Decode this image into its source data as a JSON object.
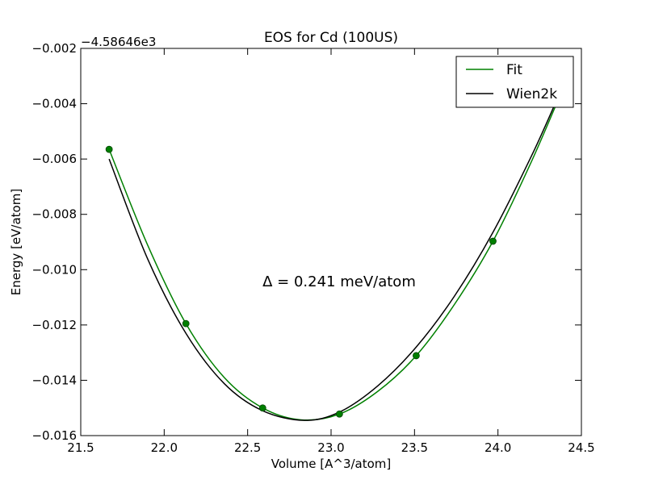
{
  "chart_data": {
    "type": "line",
    "title": "EOS for Cd (100US)",
    "xlabel": "Volume [A^3/atom]",
    "ylabel": "Energy [eV/atom]",
    "y_offset_label": "−4.58646e3",
    "annotation": "Δ = 0.241 meV/atom",
    "xlim": [
      21.5,
      24.5
    ],
    "ylim": [
      -0.016,
      -0.002
    ],
    "x_ticks": [
      21.5,
      22.0,
      22.5,
      23.0,
      23.5,
      24.0,
      24.5
    ],
    "x_tick_labels": [
      "21.5",
      "22.0",
      "22.5",
      "23.0",
      "23.5",
      "24.0",
      "24.5"
    ],
    "y_ticks": [
      -0.002,
      -0.004,
      -0.006,
      -0.008,
      -0.01,
      -0.012,
      -0.014,
      -0.016
    ],
    "y_tick_labels": [
      "−0.002",
      "−0.004",
      "−0.006",
      "−0.008",
      "−0.010",
      "−0.012",
      "−0.014",
      "−0.016"
    ],
    "grid": false,
    "legend_position": "top-right",
    "points": {
      "x": [
        21.67,
        22.13,
        22.59,
        23.05,
        23.51,
        23.97
      ],
      "y": [
        -0.00565,
        -0.01195,
        -0.015,
        -0.01522,
        -0.01311,
        -0.00897
      ],
      "color": "#007f00"
    },
    "series": [
      {
        "name": "Fit",
        "color": "#008000",
        "x": [
          21.67,
          21.9,
          22.13,
          22.36,
          22.59,
          22.82,
          23.05,
          23.28,
          23.51,
          23.74,
          23.97,
          24.2,
          24.4
        ],
        "y": [
          -0.00565,
          -0.0091,
          -0.01195,
          -0.0139,
          -0.015,
          -0.01543,
          -0.01522,
          -0.0144,
          -0.01311,
          -0.01125,
          -0.00897,
          -0.0061,
          -0.0033
        ]
      },
      {
        "name": "Wien2k",
        "color": "#000000",
        "x": [
          21.67,
          21.9,
          22.13,
          22.36,
          22.59,
          22.84,
          23.05,
          23.28,
          23.51,
          23.74,
          23.97,
          24.2,
          24.35
        ],
        "y": [
          -0.006,
          -0.0096,
          -0.0123,
          -0.01412,
          -0.0151,
          -0.01545,
          -0.01515,
          -0.0142,
          -0.0128,
          -0.01095,
          -0.00865,
          -0.0059,
          -0.0039
        ]
      }
    ]
  }
}
